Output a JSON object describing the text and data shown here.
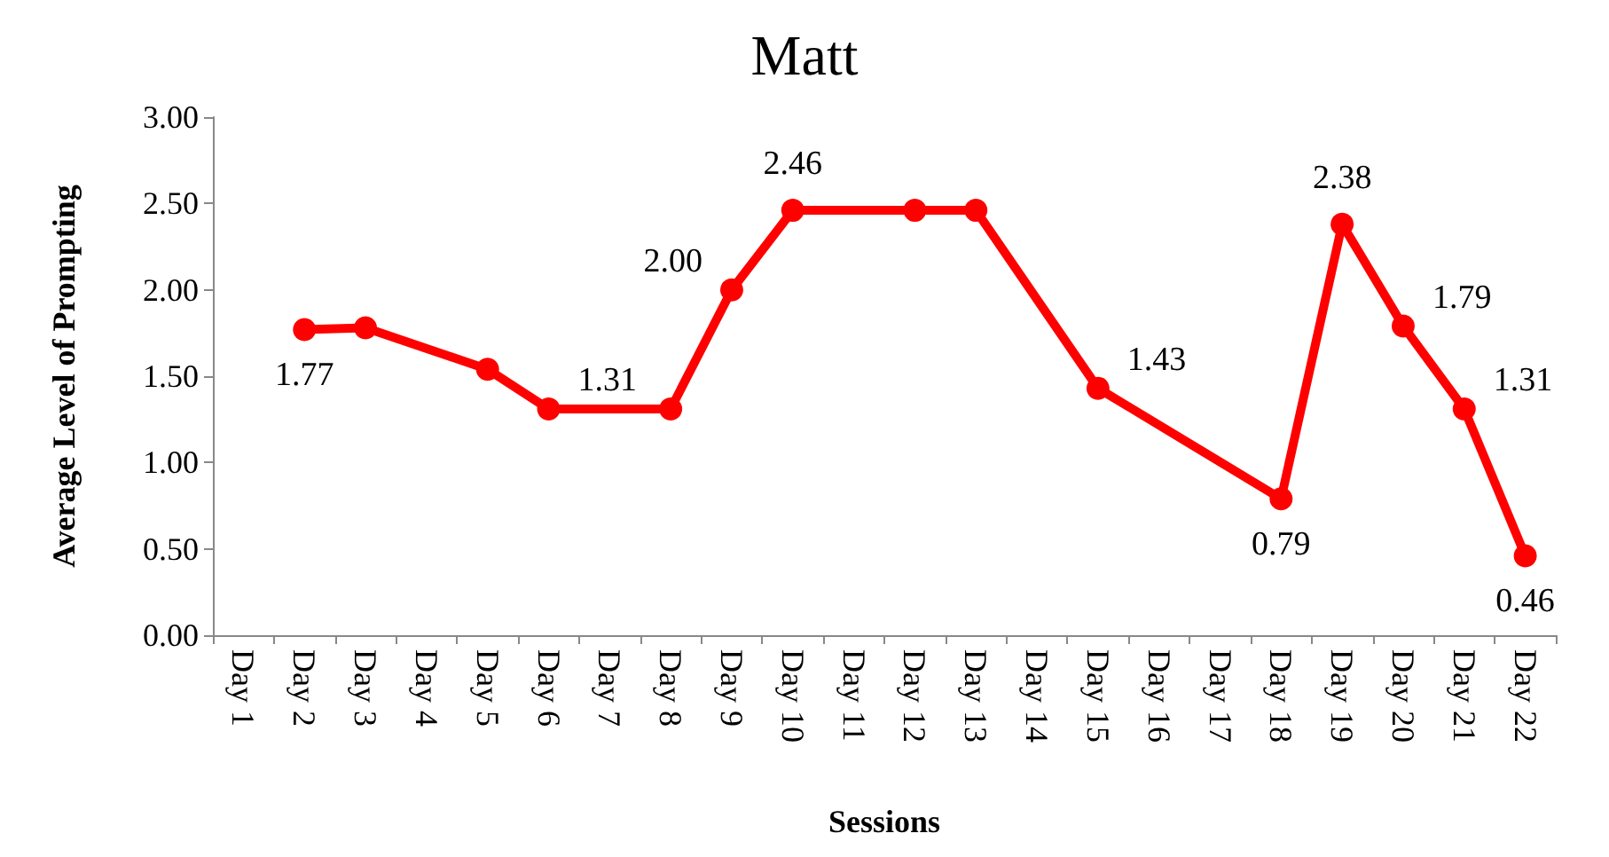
{
  "chart_data": {
    "type": "line",
    "title": "Matt",
    "xlabel": "Sessions",
    "ylabel": "Average Level of Prompting",
    "categories": [
      "Day 1",
      "Day 2",
      "Day 3",
      "Day 4",
      "Day 5",
      "Day 6",
      "Day 7",
      "Day 8",
      "Day 9",
      "Day 10",
      "Day 11",
      "Day 12",
      "Day 13",
      "Day 14",
      "Day 15",
      "Day 16",
      "Day 17",
      "Day 18",
      "Day 19",
      "Day 20",
      "Day 21",
      "Day 22"
    ],
    "series": [
      {
        "color": "#ff0000",
        "values": [
          null,
          1.77,
          1.78,
          null,
          1.54,
          1.31,
          null,
          1.31,
          2.0,
          2.46,
          null,
          2.46,
          2.46,
          null,
          1.43,
          null,
          null,
          0.79,
          2.38,
          1.79,
          1.31,
          0.46
        ],
        "value_labels": [
          null,
          "1.77",
          null,
          null,
          null,
          "1.31",
          null,
          null,
          "2.00",
          "2.46",
          null,
          null,
          null,
          null,
          "1.43",
          null,
          null,
          "0.79",
          "2.38",
          "1.79",
          "1.31",
          "0.46"
        ]
      }
    ],
    "ylim": [
      0,
      3
    ],
    "yticks": [
      {
        "value": 0,
        "label": "0.00"
      },
      {
        "value": 0.5,
        "label": "0.50"
      },
      {
        "value": 1,
        "label": "1.00"
      },
      {
        "value": 1.5,
        "label": "1.50"
      },
      {
        "value": 2,
        "label": "2.00"
      },
      {
        "value": 2.5,
        "label": "2.50"
      },
      {
        "value": 3,
        "label": "3.00"
      }
    ],
    "grid": false,
    "marker": "circle",
    "line_style": "solid"
  }
}
